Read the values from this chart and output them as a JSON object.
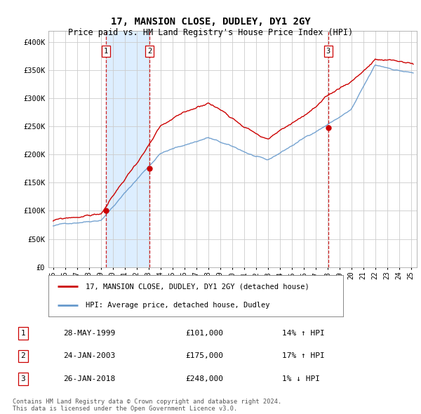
{
  "title": "17, MANSION CLOSE, DUDLEY, DY1 2GY",
  "subtitle": "Price paid vs. HM Land Registry's House Price Index (HPI)",
  "sale_label": "17, MANSION CLOSE, DUDLEY, DY1 2GY (detached house)",
  "hpi_label": "HPI: Average price, detached house, Dudley",
  "sale_color": "#cc0000",
  "hpi_color": "#6699cc",
  "bg_color": "#ffffff",
  "grid_color": "#cccccc",
  "shaded_region_color": "#ddeeff",
  "ylim": [
    0,
    420000
  ],
  "yticks": [
    0,
    50000,
    100000,
    150000,
    200000,
    250000,
    300000,
    350000,
    400000
  ],
  "ytick_labels": [
    "£0",
    "£50K",
    "£100K",
    "£150K",
    "£200K",
    "£250K",
    "£300K",
    "£350K",
    "£400K"
  ],
  "xlim_start": 1994.6,
  "xlim_end": 2025.5,
  "transactions": [
    {
      "num": 1,
      "date": "28-MAY-1999",
      "price": 101000,
      "hpi_pct": "14%",
      "direction": "↑",
      "x_year": 1999.41
    },
    {
      "num": 2,
      "date": "24-JAN-2003",
      "price": 175000,
      "hpi_pct": "17%",
      "direction": "↑",
      "x_year": 2003.07
    },
    {
      "num": 3,
      "date": "26-JAN-2018",
      "price": 248000,
      "hpi_pct": "1%",
      "direction": "↓",
      "x_year": 2018.07
    }
  ],
  "table_rows": [
    [
      "1",
      "28-MAY-1999",
      "£101,000",
      "14% ↑ HPI"
    ],
    [
      "2",
      "24-JAN-2003",
      "£175,000",
      "17% ↑ HPI"
    ],
    [
      "3",
      "26-JAN-2018",
      "£248,000",
      "1% ↓ HPI"
    ]
  ],
  "footer": "Contains HM Land Registry data © Crown copyright and database right 2024.\nThis data is licensed under the Open Government Licence v3.0."
}
